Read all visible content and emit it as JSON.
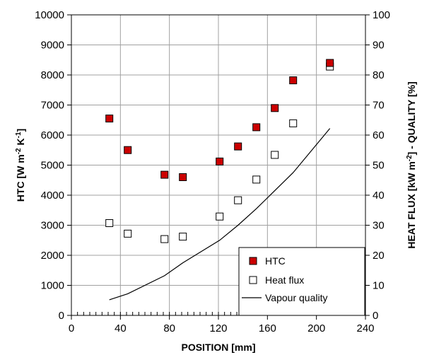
{
  "chart_data": {
    "type": "scatter",
    "x": {
      "label": "POSITION [mm]",
      "range": [
        0,
        240
      ],
      "ticks": [
        0,
        40,
        80,
        120,
        160,
        200,
        240
      ],
      "minor_step": 5
    },
    "y_left": {
      "label_parts": [
        "HTC [W m",
        "-2",
        " K",
        "-1",
        "]"
      ],
      "range": [
        0,
        10000
      ],
      "ticks": [
        0,
        1000,
        2000,
        3000,
        4000,
        5000,
        6000,
        7000,
        8000,
        9000,
        10000
      ]
    },
    "y_right": {
      "label_parts": [
        "HEAT FLUX [kW m",
        "-2",
        "]  -  QUALITY [%]"
      ],
      "range": [
        0,
        100
      ],
      "ticks": [
        0,
        10,
        20,
        30,
        40,
        50,
        60,
        70,
        80,
        90,
        100
      ]
    },
    "grid": true,
    "legend_position": "bottom-right",
    "series": [
      {
        "name": "HTC",
        "axis": "left",
        "marker": "filled-square",
        "color": "#cc0000",
        "points": [
          [
            31,
            6550
          ],
          [
            46,
            5500
          ],
          [
            76,
            4680
          ],
          [
            91,
            4600
          ],
          [
            121,
            5120
          ],
          [
            136,
            5620
          ],
          [
            151,
            6260
          ],
          [
            166,
            6900
          ],
          [
            181,
            7820
          ],
          [
            211,
            8400
          ]
        ]
      },
      {
        "name": "Heat flux",
        "axis": "right",
        "marker": "open-square",
        "color": "#000000",
        "points": [
          [
            31,
            30.7
          ],
          [
            46,
            27.2
          ],
          [
            76,
            25.4
          ],
          [
            91,
            26.2
          ],
          [
            121,
            32.9
          ],
          [
            136,
            38.3
          ],
          [
            151,
            45.2
          ],
          [
            166,
            53.4
          ],
          [
            181,
            63.9
          ],
          [
            211,
            82.8
          ]
        ]
      },
      {
        "name": "Vapour quality",
        "axis": "right",
        "marker": "line",
        "color": "#000000",
        "points": [
          [
            31,
            5.2
          ],
          [
            46,
            7.2
          ],
          [
            76,
            13.2
          ],
          [
            91,
            17.5
          ],
          [
            121,
            25.0
          ],
          [
            136,
            30.0
          ],
          [
            151,
            35.5
          ],
          [
            166,
            41.5
          ],
          [
            181,
            47.5
          ],
          [
            211,
            62.2
          ]
        ]
      }
    ]
  }
}
